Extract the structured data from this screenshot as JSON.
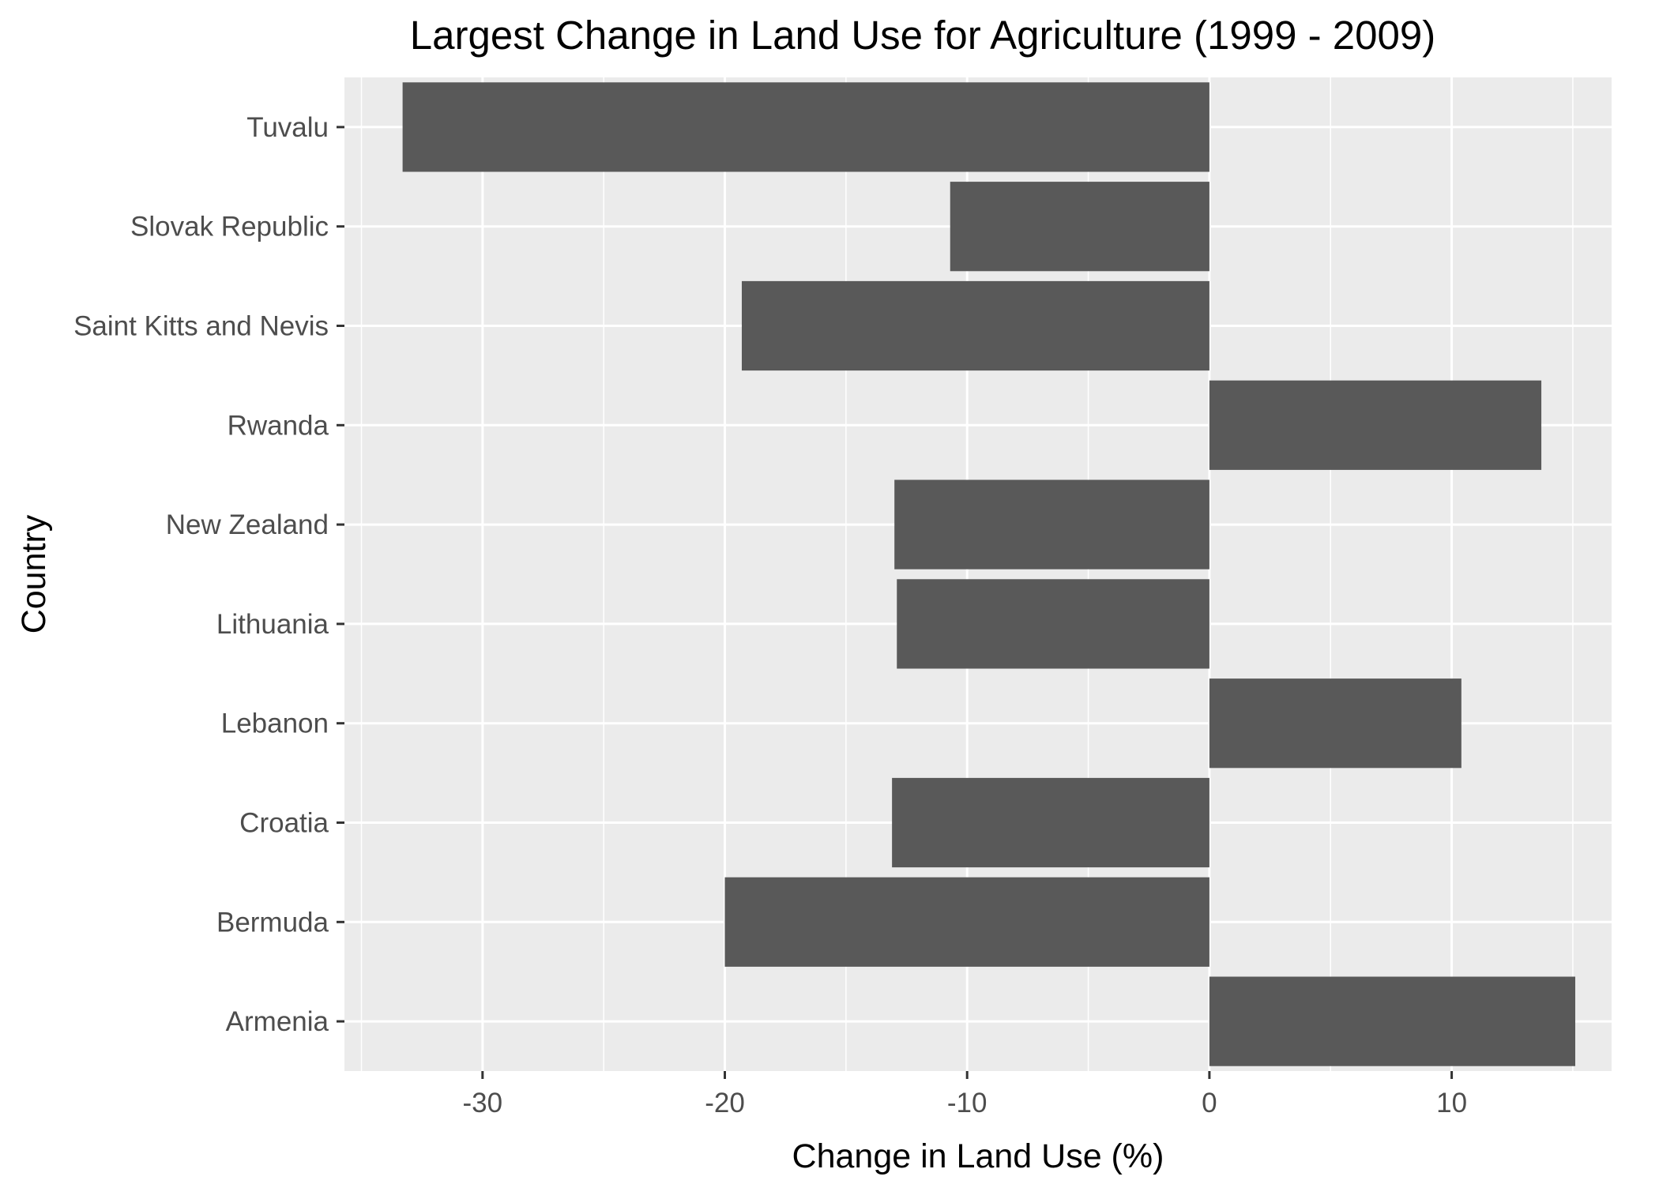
{
  "chart_data": {
    "type": "bar",
    "orientation": "horizontal",
    "title": "Largest Change in Land Use for Agriculture (1999 - 2009)",
    "xlabel": "Change in Land Use (%)",
    "ylabel": "Country",
    "categories": [
      "Tuvalu",
      "Slovak Republic",
      "Saint Kitts and Nevis",
      "Rwanda",
      "New Zealand",
      "Lithuania",
      "Lebanon",
      "Croatia",
      "Bermuda",
      "Armenia"
    ],
    "values": [
      -33.3,
      -10.7,
      -19.3,
      13.7,
      -13.0,
      -12.9,
      10.4,
      -13.1,
      -20.0,
      15.1
    ],
    "xlim": [
      -35.7,
      16.6
    ],
    "xticks": [
      -30,
      -20,
      -10,
      0,
      10
    ],
    "xtick_labels": [
      "-30",
      "-20",
      "-10",
      "0",
      "10"
    ],
    "grid": true,
    "legend": "none",
    "colors": {
      "panel_background": "#ebebeb",
      "grid_major": "#ffffff",
      "bar_fill": "#595959",
      "tick_label": "#4d4d4d",
      "tick_mark": "#333333"
    }
  }
}
